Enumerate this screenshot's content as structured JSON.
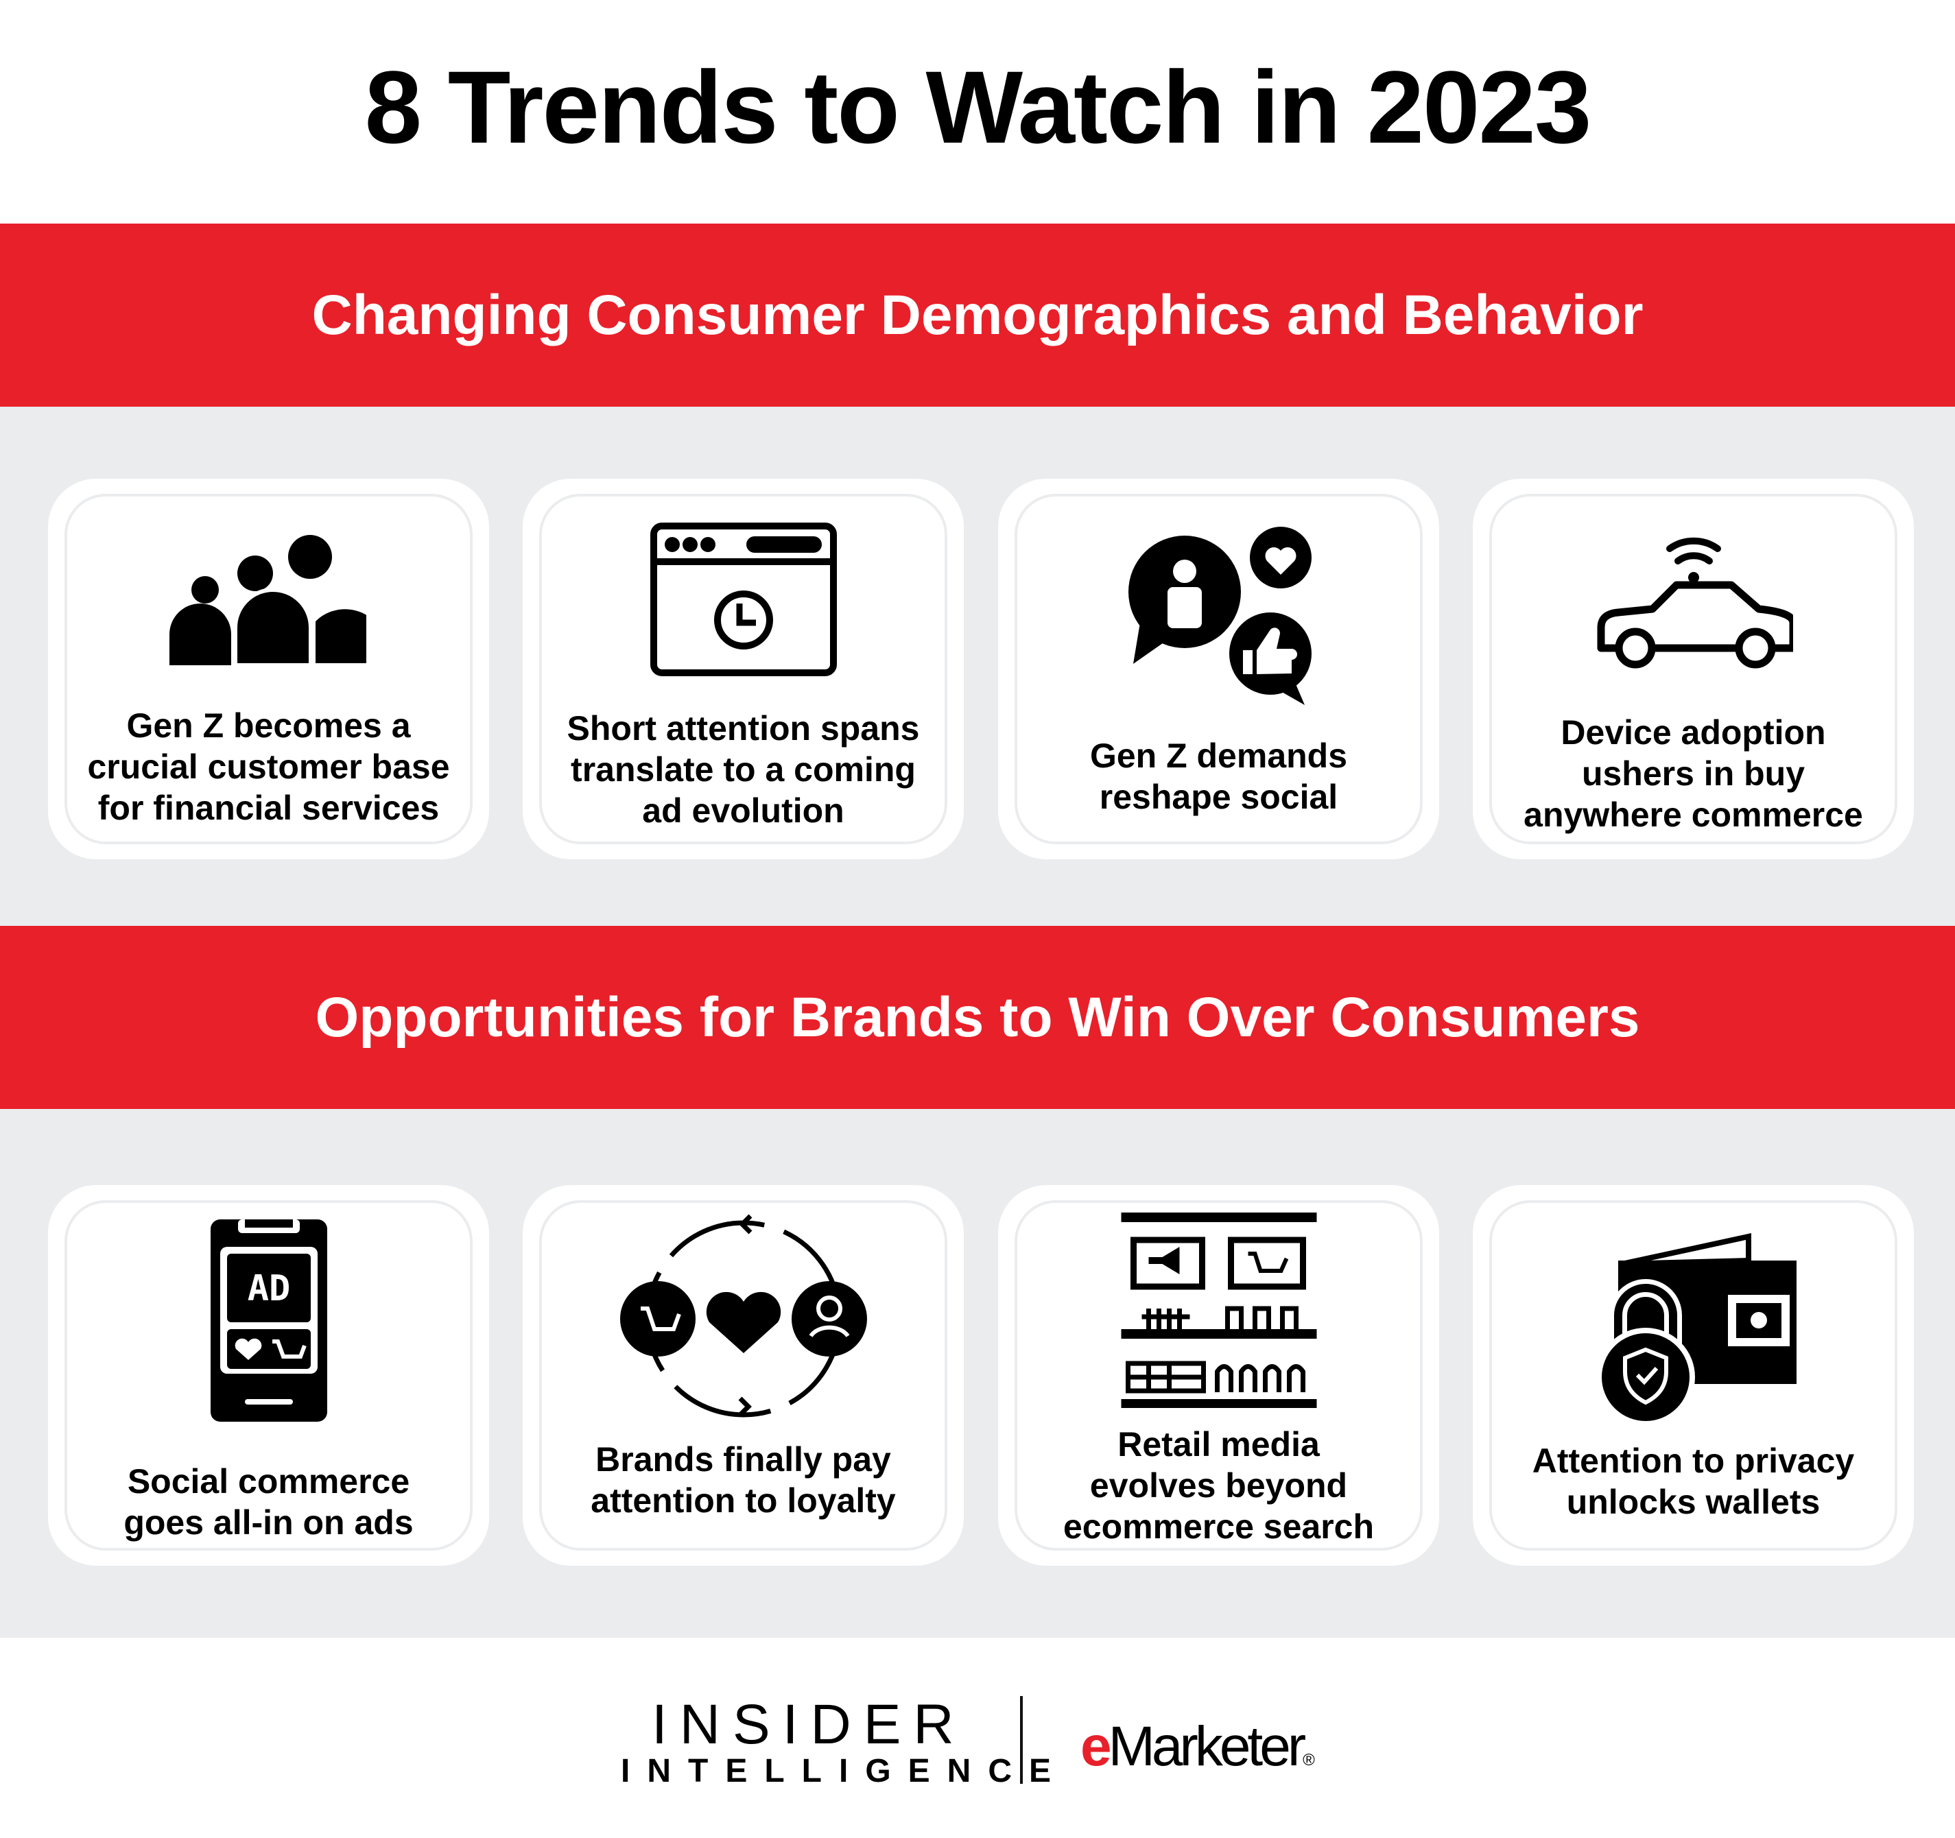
{
  "title": "8 Trends to Watch in 2023",
  "colors": {
    "accent": "#E8202A",
    "background": "#EBECEE"
  },
  "sections": [
    {
      "heading": "Changing Consumer Demographics and Behavior",
      "cards": [
        {
          "icon": "people-group-icon",
          "lines": [
            "Gen Z becomes a",
            "crucial customer base",
            "for financial services"
          ]
        },
        {
          "icon": "browser-clock-icon",
          "lines": [
            "Short attention spans",
            "translate to a coming",
            "ad evolution"
          ]
        },
        {
          "icon": "social-chat-like-icon",
          "lines": [
            "Gen Z demands",
            "reshape social"
          ]
        },
        {
          "icon": "connected-car-icon",
          "lines": [
            "Device adoption",
            "ushers in buy",
            "anywhere commerce"
          ]
        }
      ]
    },
    {
      "heading": "Opportunities for Brands to Win Over Consumers",
      "cards": [
        {
          "icon": "phone-ad-icon",
          "icon_text": "AD",
          "lines": [
            "Social commerce",
            "goes all-in on ads"
          ]
        },
        {
          "icon": "loyalty-cycle-icon",
          "lines": [
            "Brands finally pay",
            "attention to loyalty"
          ]
        },
        {
          "icon": "retail-shelf-icon",
          "lines": [
            "Retail media",
            "evolves beyond",
            "ecommerce search"
          ]
        },
        {
          "icon": "wallet-lock-icon",
          "lines": [
            "Attention to privacy",
            "unlocks wallets"
          ]
        }
      ]
    }
  ],
  "footer": {
    "logo1_line1": "INSIDER",
    "logo1_line2": "INTELLIGENCE",
    "logo2_e": "e",
    "logo2_rest": "Marketer",
    "logo2_mark": "®"
  }
}
